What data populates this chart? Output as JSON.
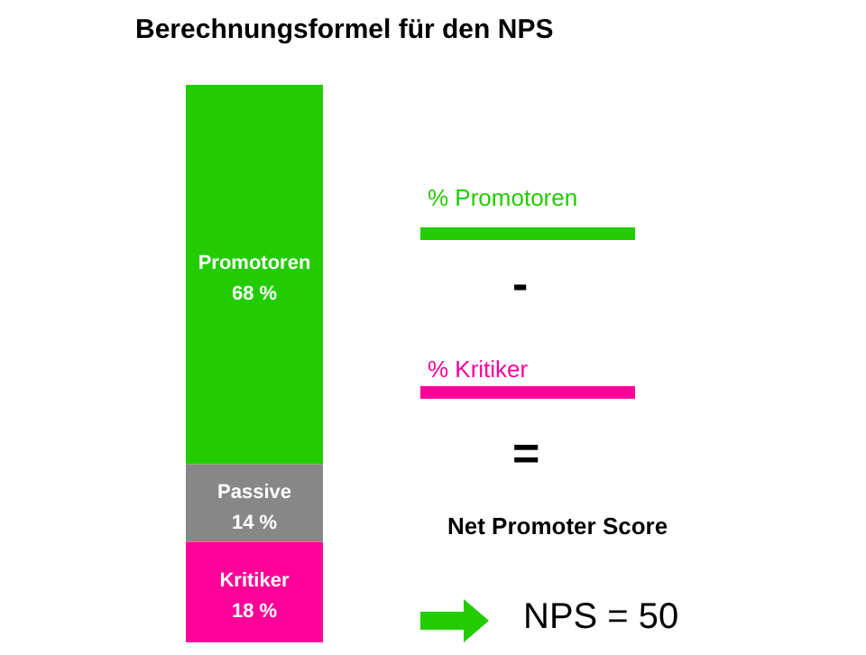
{
  "chart_data": {
    "type": "bar",
    "stacked": true,
    "title": "Berechnungsformel für den NPS",
    "categories": [
      null
    ],
    "series": [
      {
        "name": "Kritiker",
        "color": "#ff0099",
        "values": [
          18
        ],
        "value_labels": [
          "18 %"
        ]
      },
      {
        "name": "Passive",
        "color": "#878787",
        "values": [
          14
        ],
        "value_labels": [
          "14 %"
        ]
      },
      {
        "name": "Promotoren",
        "color": "#22cc00",
        "values": [
          68
        ],
        "value_labels": [
          "68 %"
        ]
      }
    ],
    "annotations": [
      "% Promotoren",
      "-",
      "% Kritiker",
      "=",
      "Net Promoter Score",
      "NPS = 50"
    ],
    "legend": false,
    "grid": false,
    "tick_labels": false
  }
}
